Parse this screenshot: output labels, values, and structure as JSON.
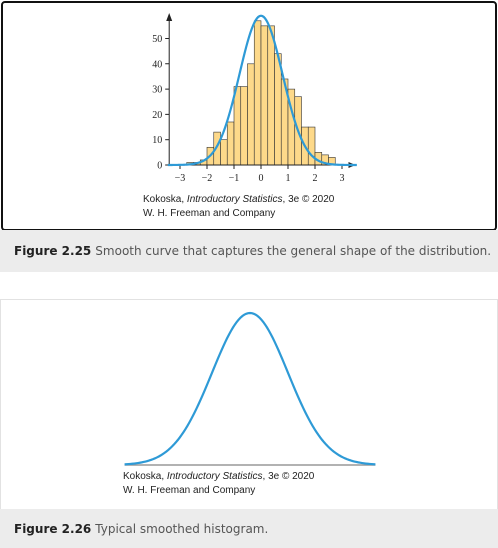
{
  "figure1": {
    "chart_data": {
      "type": "bar",
      "bin_width": 0.25,
      "bins_start": [
        -3,
        -2.75,
        -2.5,
        -2.25,
        -2,
        -1.75,
        -1.5,
        -1.25,
        -1,
        -0.75,
        -0.5,
        -0.25,
        0,
        0.25,
        0.5,
        0.75,
        1,
        1.25,
        1.5,
        1.75,
        2,
        2.25,
        2.5,
        2.75
      ],
      "values": [
        0,
        1,
        1,
        2,
        7,
        13,
        10,
        17,
        31,
        31,
        40,
        57,
        55,
        55,
        44,
        34,
        30,
        27,
        15,
        15,
        5,
        4,
        3,
        0
      ],
      "xlim": [
        -3.4,
        3.5
      ],
      "ylim": [
        0,
        60
      ],
      "xticks": [
        -3,
        -2,
        -1,
        0,
        1,
        2,
        3
      ],
      "xtick_labels": [
        "−3",
        "−2",
        "−1",
        "0",
        "1",
        "2",
        "3"
      ],
      "yticks": [
        0,
        10,
        20,
        30,
        40,
        50
      ],
      "ytick_labels": [
        "0",
        "10",
        "20",
        "30",
        "40",
        "50"
      ],
      "curve": {
        "mean": 0,
        "sd": 0.8,
        "peak": 59
      },
      "colors": {
        "bar_fill": "#fdd98a",
        "bar_stroke": "#333333",
        "curve": "#2e9ad6"
      },
      "title": "",
      "xlabel": "",
      "ylabel": ""
    },
    "credit_author": "Kokoska, ",
    "credit_title": "Introductory Statistics",
    "credit_edition": ", 3e © 2020",
    "credit_publisher": "W. H. Freeman and Company",
    "caption_label": "Figure 2.25",
    "caption_text": "Smooth curve that captures the general shape of the distribution."
  },
  "figure2": {
    "chart_data": {
      "type": "line",
      "curve": {
        "mean": 0,
        "sd": 1
      },
      "xlim": [
        -3.3,
        3.3
      ],
      "colors": {
        "curve": "#2e9ad6",
        "baseline": "#999999"
      },
      "title": "",
      "xlabel": "",
      "ylabel": ""
    },
    "credit_author": "Kokoska, ",
    "credit_title": "Introductory Statistics",
    "credit_edition": ", 3e © 2020",
    "credit_publisher": "W. H. Freeman and Company",
    "caption_label": "Figure 2.26",
    "caption_text": "Typical smoothed histogram."
  }
}
